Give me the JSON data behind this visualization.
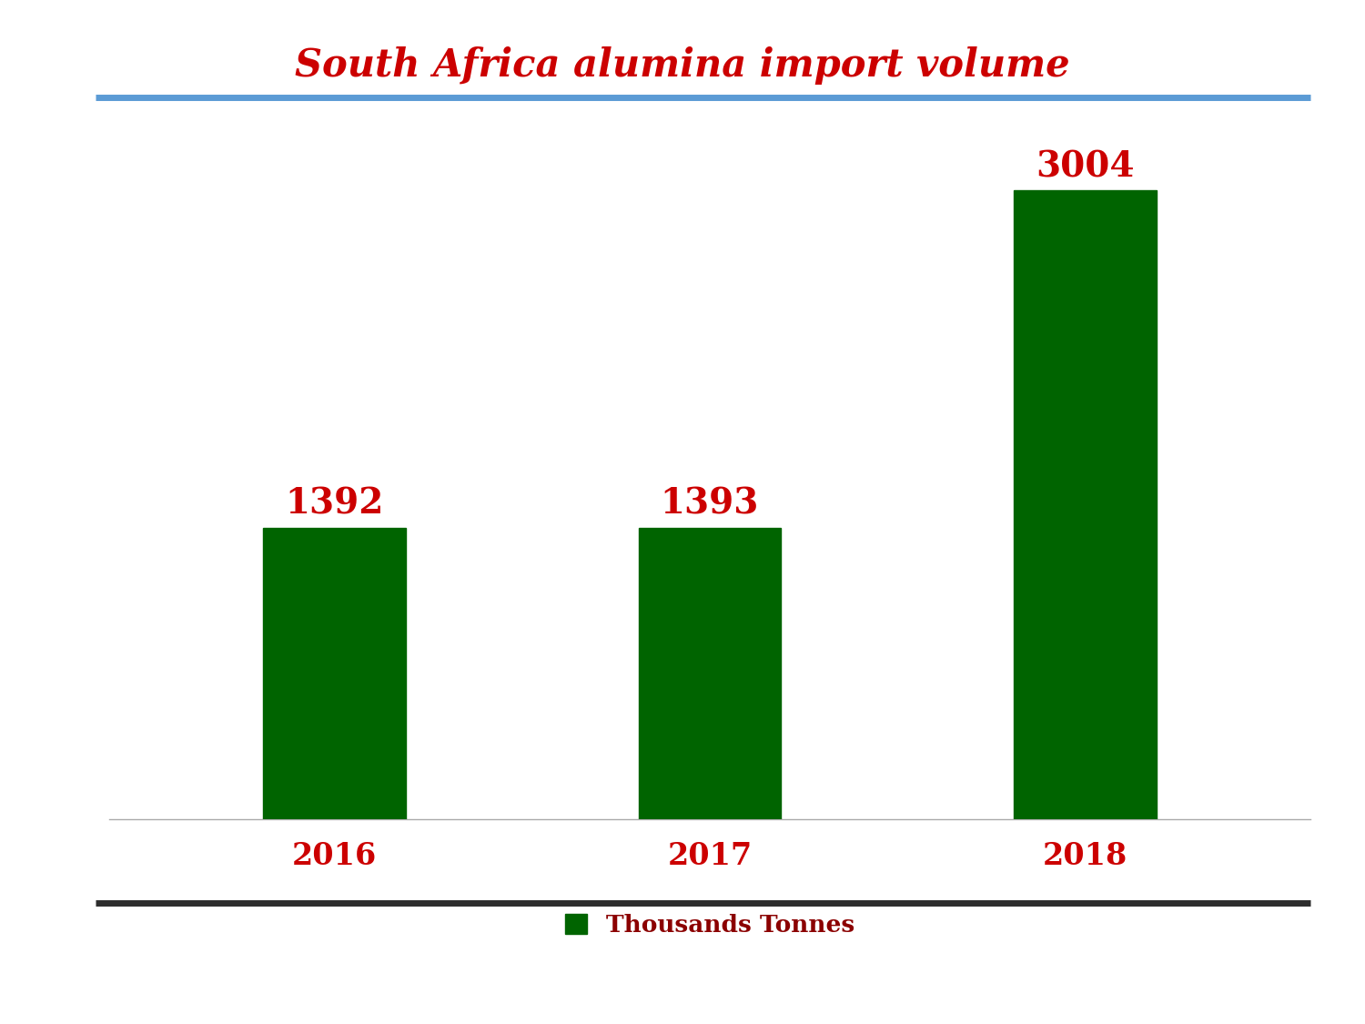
{
  "title": "South Africa alumina import volume",
  "categories": [
    "2016",
    "2017",
    "2018"
  ],
  "values": [
    1392,
    1393,
    3004
  ],
  "bar_color": "#006400",
  "value_color": "#cc0000",
  "title_color": "#cc0000",
  "top_line_color": "#5b9bd5",
  "bottom_line_color": "#2d2d2d",
  "background_color": "#ffffff",
  "xtick_color": "#cc0000",
  "legend_label": "Thousands Tonnes",
  "legend_color": "#006400",
  "legend_text_color": "#8b0000",
  "title_fontsize": 30,
  "value_fontsize": 28,
  "xtick_fontsize": 24,
  "legend_fontsize": 19,
  "ylim": [
    0,
    3400
  ],
  "bar_width": 0.38
}
